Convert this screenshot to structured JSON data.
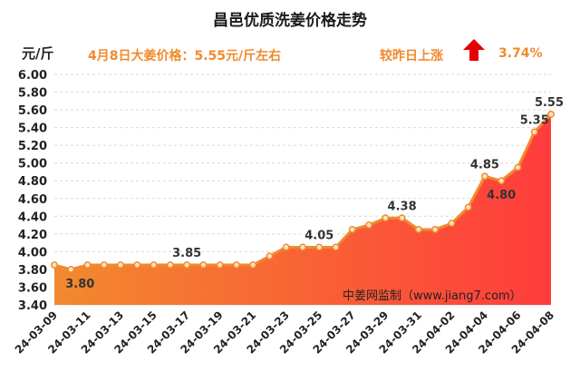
{
  "page": {
    "title": "昌邑优质洗姜价格走势",
    "unit": "元/斤",
    "price_note": "4月8日大姜价格：5.55元/斤左右",
    "change_label": "较昨日上涨",
    "change_value": "3.74%",
    "watermark": "中姜网监制（www.jiang7.com）"
  },
  "colors": {
    "line": "#f08a2c",
    "area_top": "#ff3c3c",
    "area_bottom": "#f28a2e",
    "arrow": "#e60000",
    "accent_text": "#f08a2c"
  },
  "chart_data": {
    "type": "area",
    "title": "昌邑优质洗姜价格走势",
    "ylabel": "元/斤",
    "xlabel": "",
    "ylim": [
      3.4,
      6.0
    ],
    "yticks": [
      "3.40",
      "3.60",
      "3.80",
      "4.00",
      "4.20",
      "4.40",
      "4.60",
      "4.80",
      "5.00",
      "5.20",
      "5.40",
      "5.60",
      "5.80",
      "6.00"
    ],
    "xtick_labels": [
      "24-03-09",
      "24-03-11",
      "24-03-13",
      "24-03-15",
      "24-03-17",
      "24-03-19",
      "24-03-21",
      "24-03-23",
      "24-03-25",
      "24-03-27",
      "24-03-29",
      "24-03-31",
      "24-04-02",
      "24-04-04",
      "24-04-06",
      "24-04-08"
    ],
    "x": [
      "24-03-09",
      "24-03-10",
      "24-03-11",
      "24-03-12",
      "24-03-13",
      "24-03-14",
      "24-03-15",
      "24-03-16",
      "24-03-17",
      "24-03-18",
      "24-03-19",
      "24-03-20",
      "24-03-21",
      "24-03-22",
      "24-03-23",
      "24-03-24",
      "24-03-25",
      "24-03-26",
      "24-03-27",
      "24-03-28",
      "24-03-29",
      "24-03-30",
      "24-03-31",
      "24-04-01",
      "24-04-02",
      "24-04-03",
      "24-04-04",
      "24-04-05",
      "24-04-06",
      "24-04-07",
      "24-04-08"
    ],
    "values": [
      3.85,
      3.8,
      3.85,
      3.85,
      3.85,
      3.85,
      3.85,
      3.85,
      3.85,
      3.85,
      3.85,
      3.85,
      3.85,
      3.95,
      4.05,
      4.05,
      4.05,
      4.05,
      4.25,
      4.3,
      4.38,
      4.38,
      4.25,
      4.25,
      4.32,
      4.5,
      4.85,
      4.8,
      4.95,
      5.35,
      5.55
    ],
    "annotations": [
      {
        "index": 1,
        "label": "3.80",
        "pos": "below"
      },
      {
        "index": 8,
        "label": "3.85",
        "pos": "above"
      },
      {
        "index": 16,
        "label": "4.05",
        "pos": "above"
      },
      {
        "index": 21,
        "label": "4.38",
        "pos": "above"
      },
      {
        "index": 26,
        "label": "4.85",
        "pos": "above"
      },
      {
        "index": 27,
        "label": "4.80",
        "pos": "below"
      },
      {
        "index": 29,
        "label": "5.35",
        "pos": "above"
      },
      {
        "index": 30,
        "label": "5.55",
        "pos": "above"
      }
    ]
  }
}
